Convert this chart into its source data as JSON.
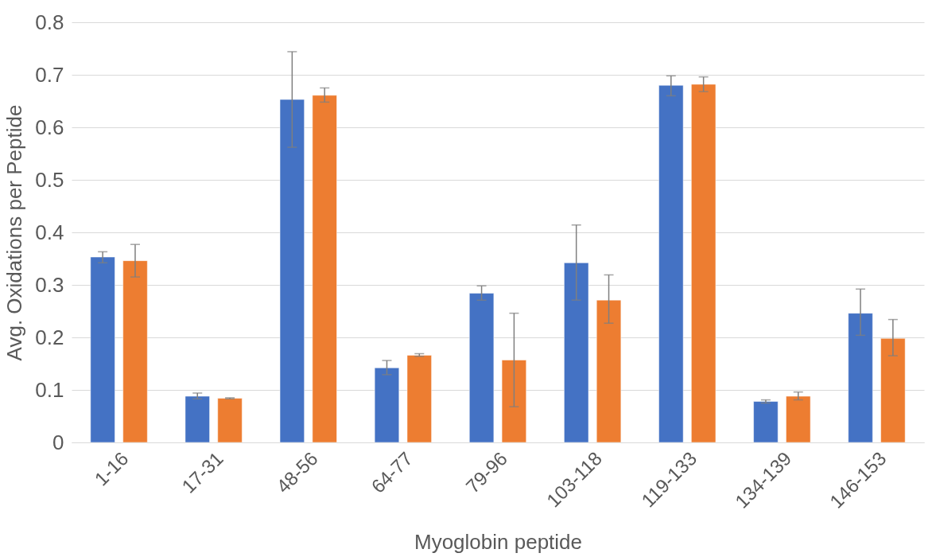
{
  "chart_data": {
    "type": "bar",
    "xlabel": "Myoglobin peptide",
    "ylabel": "Avg. Oxidations per Peptide",
    "categories": [
      "1-16",
      "17-31",
      "48-56",
      "64-77",
      "79-96",
      "103-118",
      "119-133",
      "134-139",
      "146-153"
    ],
    "series": [
      {
        "color": "#4472c4",
        "values": [
          0.353,
          0.088,
          0.653,
          0.142,
          0.284,
          0.342,
          0.68,
          0.078,
          0.246
        ],
        "errors": [
          [
            0.342,
            0.363
          ],
          [
            0.083,
            0.094
          ],
          [
            0.562,
            0.744
          ],
          [
            0.129,
            0.156
          ],
          [
            0.271,
            0.298
          ],
          [
            0.271,
            0.414
          ],
          [
            0.66,
            0.698
          ],
          [
            0.075,
            0.081
          ],
          [
            0.204,
            0.292
          ]
        ]
      },
      {
        "color": "#ed7d31",
        "values": [
          0.346,
          0.084,
          0.661,
          0.166,
          0.157,
          0.271,
          0.682,
          0.088,
          0.198
        ],
        "errors": [
          [
            0.315,
            0.377
          ],
          [
            0.083,
            0.085
          ],
          [
            0.648,
            0.675
          ],
          [
            0.164,
            0.169
          ],
          [
            0.068,
            0.246
          ],
          [
            0.227,
            0.319
          ],
          [
            0.668,
            0.696
          ],
          [
            0.081,
            0.096
          ],
          [
            0.165,
            0.234
          ]
        ]
      }
    ],
    "ylim": [
      0,
      0.8
    ],
    "yticks": [
      0,
      0.1,
      0.2,
      0.3,
      0.4,
      0.5,
      0.6,
      0.7,
      0.8
    ],
    "grid": "y",
    "legend": false
  }
}
